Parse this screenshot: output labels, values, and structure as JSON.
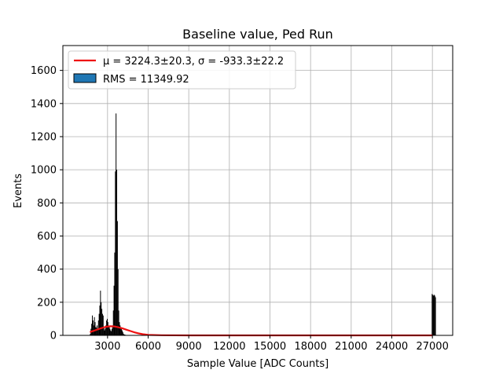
{
  "chart_data": {
    "type": "bar",
    "title": "Baseline value, Ped Run",
    "xlabel": "Sample Value [ADC Counts]",
    "ylabel": "Events",
    "xlim": [
      -300,
      28500
    ],
    "ylim": [
      0,
      1750
    ],
    "xticks": [
      3000,
      6000,
      9000,
      12000,
      15000,
      18000,
      21000,
      24000,
      27000
    ],
    "xtick_labels": [
      "3000",
      "6000",
      "9000",
      "12000",
      "15000",
      "18000",
      "21000",
      "24000",
      "27000"
    ],
    "yticks": [
      0,
      200,
      400,
      600,
      800,
      1000,
      1200,
      1400,
      1600
    ],
    "ytick_labels": [
      "0",
      "200",
      "400",
      "600",
      "800",
      "1000",
      "1200",
      "1400",
      "1600"
    ],
    "grid": true,
    "legend": {
      "placement": "upper-left",
      "fit_label": "μ = 3224.3±20.3, σ = -933.3±22.2",
      "hist_label": "RMS = 11349.92"
    },
    "colors": {
      "fit": "#ee1111",
      "hist_fill": "#1f77b4",
      "bars": "#000000"
    },
    "histogram": {
      "bin_width": 50,
      "x": [
        1700,
        1750,
        1800,
        1850,
        1900,
        1950,
        2000,
        2050,
        2100,
        2150,
        2200,
        2250,
        2300,
        2350,
        2400,
        2450,
        2500,
        2550,
        2600,
        2650,
        2700,
        2750,
        2800,
        2850,
        2900,
        2950,
        3000,
        3050,
        3100,
        3150,
        3200,
        3250,
        3300,
        3350,
        3400,
        3450,
        3500,
        3550,
        3600,
        3650,
        3700,
        3750,
        3800,
        3850,
        3900,
        3950,
        4000,
        4050,
        4100,
        4150,
        4200,
        4250,
        4300,
        4350,
        4400,
        4450,
        4500,
        26950,
        27000,
        27050,
        27100,
        27150,
        27200
      ],
      "values": [
        10,
        40,
        70,
        120,
        90,
        60,
        110,
        80,
        50,
        45,
        60,
        40,
        90,
        130,
        180,
        270,
        200,
        160,
        130,
        120,
        50,
        30,
        40,
        60,
        90,
        100,
        80,
        60,
        50,
        40,
        30,
        25,
        40,
        60,
        150,
        300,
        500,
        990,
        1340,
        1000,
        690,
        400,
        150,
        80,
        60,
        50,
        40,
        30,
        20,
        10,
        5,
        5,
        3,
        2,
        2,
        1,
        1,
        250,
        245,
        240,
        245,
        240,
        230
      ]
    },
    "fit": {
      "x": [
        1700,
        2000,
        2300,
        2600,
        2900,
        3200,
        3500,
        3800,
        4100,
        4400,
        4700,
        5000,
        5300,
        5600,
        6000,
        7000,
        9000,
        12000,
        15000,
        18000,
        21000,
        24000,
        27000
      ],
      "values": [
        20,
        28,
        37,
        45,
        52,
        55,
        54,
        49,
        42,
        34,
        26,
        18,
        12,
        7,
        3,
        1,
        0,
        0,
        0,
        0,
        0,
        0,
        0
      ]
    }
  }
}
